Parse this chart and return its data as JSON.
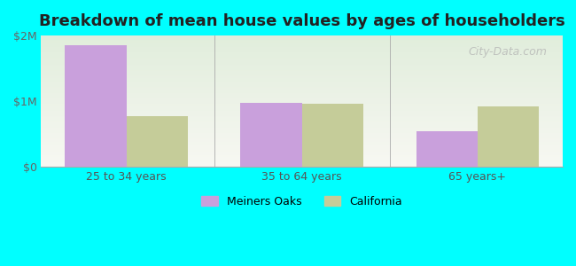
{
  "title": "Breakdown of mean house values by ages of householders",
  "categories": [
    "25 to 34 years",
    "35 to 64 years",
    "65 years+"
  ],
  "meiners_oaks": [
    1850000,
    980000,
    550000
  ],
  "california": [
    780000,
    970000,
    920000
  ],
  "ylim": [
    0,
    2000000
  ],
  "yticks": [
    0,
    1000000,
    2000000
  ],
  "ytick_labels": [
    "$0",
    "$1M",
    "$2M"
  ],
  "bar_color_meiners": "#c9a0dc",
  "bar_color_california": "#c5cc99",
  "background_color": "#00ffff",
  "legend_meiners": "Meiners Oaks",
  "legend_california": "California",
  "watermark": "City-Data.com",
  "bar_width": 0.35
}
